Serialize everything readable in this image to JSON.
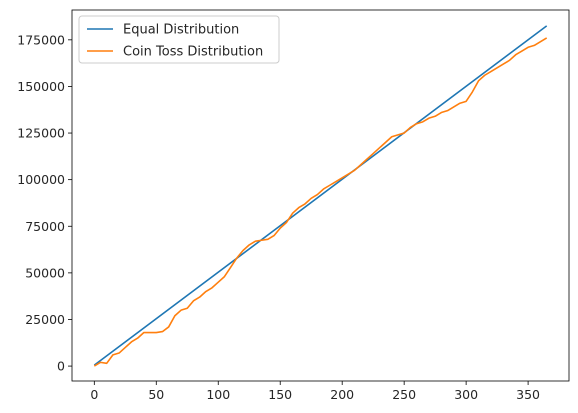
{
  "chart_data": {
    "type": "line",
    "title": "",
    "xlabel": "",
    "ylabel": "",
    "xlim": [
      -18,
      383
    ],
    "ylim": [
      -8000,
      191000
    ],
    "xticks": [
      0,
      50,
      100,
      150,
      200,
      250,
      300,
      350
    ],
    "yticks": [
      0,
      25000,
      50000,
      75000,
      100000,
      125000,
      150000,
      175000
    ],
    "grid": false,
    "legend_position": "top-left",
    "colors": {
      "equal": "#1f77b4",
      "coin": "#ff7f0e"
    },
    "series": [
      {
        "name": "Equal Distribution",
        "x": [
          0,
          365
        ],
        "y": [
          500,
          182500
        ]
      },
      {
        "name": "Coin Toss Distribution",
        "x": [
          0,
          5,
          10,
          15,
          20,
          25,
          30,
          35,
          40,
          45,
          50,
          55,
          60,
          65,
          70,
          75,
          80,
          85,
          90,
          95,
          100,
          105,
          110,
          115,
          120,
          125,
          130,
          135,
          140,
          145,
          150,
          155,
          160,
          165,
          170,
          175,
          180,
          185,
          190,
          195,
          200,
          205,
          210,
          215,
          220,
          225,
          230,
          235,
          240,
          245,
          250,
          255,
          260,
          265,
          270,
          275,
          280,
          285,
          290,
          295,
          300,
          305,
          310,
          315,
          320,
          325,
          330,
          335,
          340,
          345,
          350,
          355,
          360,
          365
        ],
        "y": [
          0,
          2000,
          1500,
          6000,
          7000,
          10000,
          13000,
          15000,
          18000,
          18000,
          18000,
          18500,
          21000,
          27000,
          30000,
          31000,
          35000,
          37000,
          40000,
          42000,
          45000,
          48000,
          53000,
          58000,
          62000,
          65000,
          67000,
          67500,
          68000,
          70000,
          74000,
          77000,
          82000,
          85000,
          87000,
          90000,
          92000,
          95000,
          97000,
          99000,
          101000,
          103000,
          105000,
          108000,
          111000,
          114000,
          117000,
          120000,
          123000,
          124000,
          125000,
          128000,
          130000,
          131000,
          133000,
          134000,
          136000,
          137000,
          139000,
          141000,
          142000,
          147000,
          153000,
          156000,
          158000,
          160000,
          162000,
          164000,
          167000,
          169000,
          171000,
          172000,
          174000,
          176000
        ]
      }
    ]
  }
}
